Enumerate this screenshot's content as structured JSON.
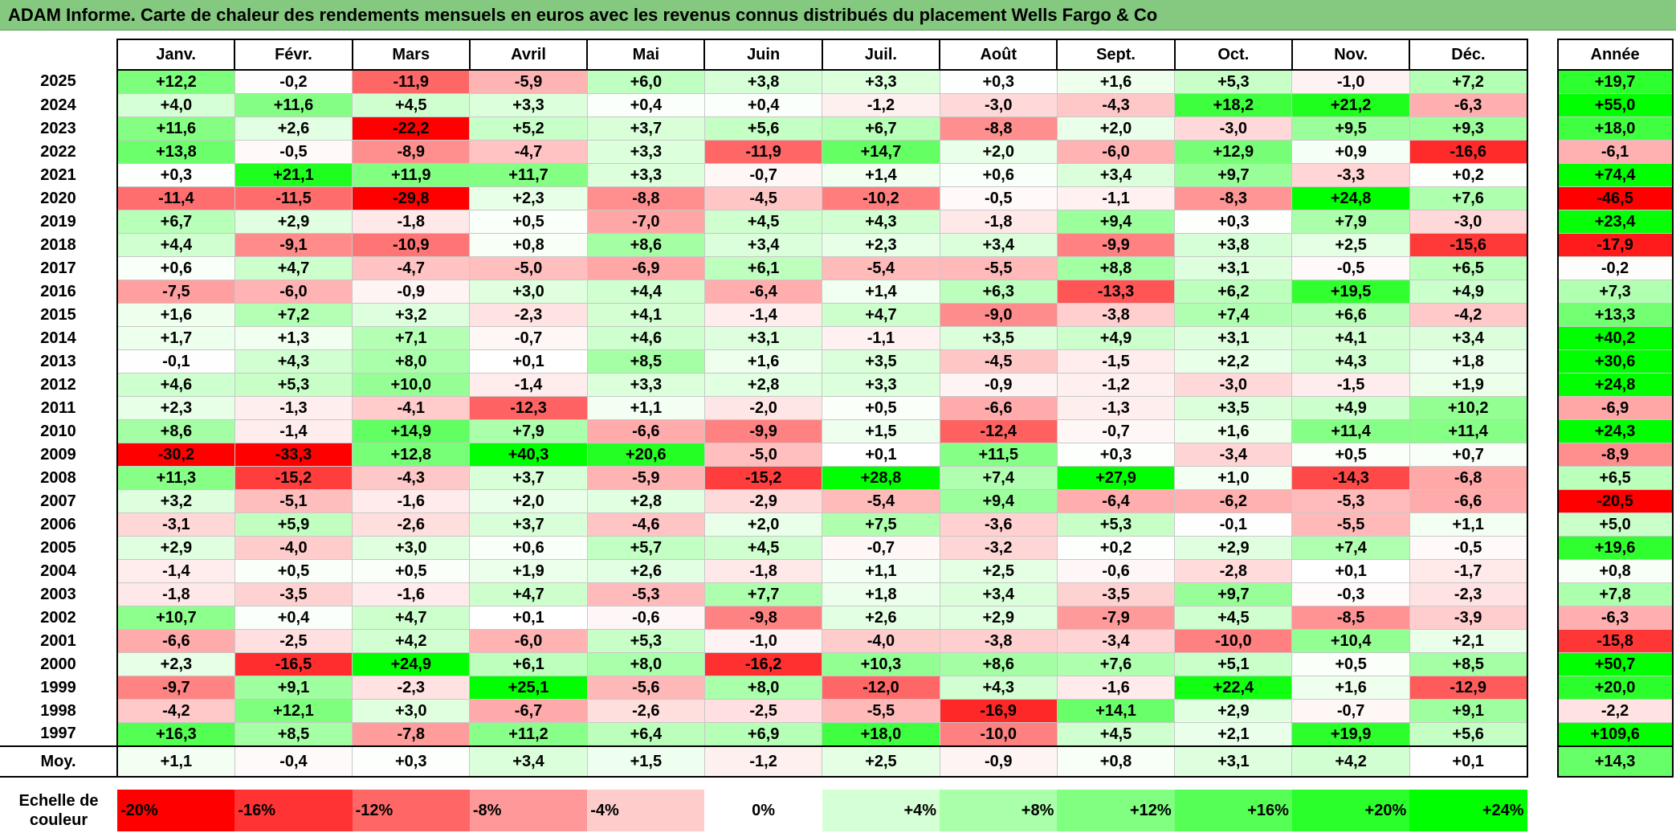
{
  "title": "ADAM Informe. Carte de chaleur des rendements mensuels en euros avec les revenus connus distribués du placement Wells Fargo & Co",
  "months": [
    "Janv.",
    "Févr.",
    "Mars",
    "Avril",
    "Mai",
    "Juin",
    "Juil.",
    "Août",
    "Sept.",
    "Oct.",
    "Nov.",
    "Déc."
  ],
  "annual_label": "Année",
  "average_label": "Moy.",
  "scale_label": "Echelle de couleur",
  "scale": [
    "-20%",
    "-16%",
    "-12%",
    "-8%",
    "-4%",
    "0%",
    "+4%",
    "+8%",
    "+12%",
    "+16%",
    "+20%",
    "+24%"
  ],
  "colors": {
    "title_bg": "#84c97f",
    "negative": "#ff0000",
    "positive": "#00ff00",
    "neutral": "#ffffff"
  },
  "chart_data": {
    "type": "heatmap",
    "title": "ADAM Informe. Carte de chaleur des rendements mensuels en euros avec les revenus connus distribués du placement Wells Fargo & Co",
    "color_scale": {
      "min": -20,
      "mid": 0,
      "max": 24
    },
    "rows": [
      {
        "year": "2025",
        "values": [
          "+12,2",
          "-0,2",
          "-11,9",
          "-5,9",
          "+6,0",
          "+3,8",
          "+3,3",
          "+0,3",
          "+1,6",
          "+5,3",
          "-1,0",
          "+7,2"
        ],
        "annual": "+19,7"
      },
      {
        "year": "2024",
        "values": [
          "+4,0",
          "+11,6",
          "+4,5",
          "+3,3",
          "+0,4",
          "+0,4",
          "-1,2",
          "-3,0",
          "-4,3",
          "+18,2",
          "+21,2",
          "-6,3"
        ],
        "annual": "+55,0"
      },
      {
        "year": "2023",
        "values": [
          "+11,6",
          "+2,6",
          "-22,2",
          "+5,2",
          "+3,7",
          "+5,6",
          "+6,7",
          "-8,8",
          "+2,0",
          "-3,0",
          "+9,5",
          "+9,3"
        ],
        "annual": "+18,0"
      },
      {
        "year": "2022",
        "values": [
          "+13,8",
          "-0,5",
          "-8,9",
          "-4,7",
          "+3,3",
          "-11,9",
          "+14,7",
          "+2,0",
          "-6,0",
          "+12,9",
          "+0,9",
          "-16,6"
        ],
        "annual": "-6,1"
      },
      {
        "year": "2021",
        "values": [
          "+0,3",
          "+21,1",
          "+11,9",
          "+11,7",
          "+3,3",
          "-0,7",
          "+1,4",
          "+0,6",
          "+3,4",
          "+9,7",
          "-3,3",
          "+0,2"
        ],
        "annual": "+74,4"
      },
      {
        "year": "2020",
        "values": [
          "-11,4",
          "-11,5",
          "-29,8",
          "+2,3",
          "-8,8",
          "-4,5",
          "-10,2",
          "-0,5",
          "-1,1",
          "-8,3",
          "+24,8",
          "+7,6"
        ],
        "annual": "-46,5"
      },
      {
        "year": "2019",
        "values": [
          "+6,7",
          "+2,9",
          "-1,8",
          "+0,5",
          "-7,0",
          "+4,5",
          "+4,3",
          "-1,8",
          "+9,4",
          "+0,3",
          "+7,9",
          "-3,0"
        ],
        "annual": "+23,4"
      },
      {
        "year": "2018",
        "values": [
          "+4,4",
          "-9,1",
          "-10,9",
          "+0,8",
          "+8,6",
          "+3,4",
          "+2,3",
          "+3,4",
          "-9,9",
          "+3,8",
          "+2,5",
          "-15,6"
        ],
        "annual": "-17,9"
      },
      {
        "year": "2017",
        "values": [
          "+0,6",
          "+4,7",
          "-4,7",
          "-5,0",
          "-6,9",
          "+6,1",
          "-5,4",
          "-5,5",
          "+8,8",
          "+3,1",
          "-0,5",
          "+6,5"
        ],
        "annual": "-0,2"
      },
      {
        "year": "2016",
        "values": [
          "-7,5",
          "-6,0",
          "-0,9",
          "+3,0",
          "+4,4",
          "-6,4",
          "+1,4",
          "+6,3",
          "-13,3",
          "+6,2",
          "+19,5",
          "+4,9"
        ],
        "annual": "+7,3"
      },
      {
        "year": "2015",
        "values": [
          "+1,6",
          "+7,2",
          "+3,2",
          "-2,3",
          "+4,1",
          "-1,4",
          "+4,7",
          "-9,0",
          "-3,8",
          "+7,4",
          "+6,6",
          "-4,2"
        ],
        "annual": "+13,3"
      },
      {
        "year": "2014",
        "values": [
          "+1,7",
          "+1,3",
          "+7,1",
          "-0,7",
          "+4,6",
          "+3,1",
          "-1,1",
          "+3,5",
          "+4,9",
          "+3,1",
          "+4,1",
          "+3,4"
        ],
        "annual": "+40,2"
      },
      {
        "year": "2013",
        "values": [
          "-0,1",
          "+4,3",
          "+8,0",
          "+0,1",
          "+8,5",
          "+1,6",
          "+3,5",
          "-4,5",
          "-1,5",
          "+2,2",
          "+4,3",
          "+1,8"
        ],
        "annual": "+30,6"
      },
      {
        "year": "2012",
        "values": [
          "+4,6",
          "+5,3",
          "+10,0",
          "-1,4",
          "+3,3",
          "+2,8",
          "+3,3",
          "-0,9",
          "-1,2",
          "-3,0",
          "-1,5",
          "+1,9"
        ],
        "annual": "+24,8"
      },
      {
        "year": "2011",
        "values": [
          "+2,3",
          "-1,3",
          "-4,1",
          "-12,3",
          "+1,1",
          "-2,0",
          "+0,5",
          "-6,6",
          "-1,3",
          "+3,5",
          "+4,9",
          "+10,2"
        ],
        "annual": "-6,9"
      },
      {
        "year": "2010",
        "values": [
          "+8,6",
          "-1,4",
          "+14,9",
          "+7,9",
          "-6,6",
          "-9,9",
          "+1,5",
          "-12,4",
          "-0,7",
          "+1,6",
          "+11,4",
          "+11,4"
        ],
        "annual": "+24,3"
      },
      {
        "year": "2009",
        "values": [
          "-30,2",
          "-33,3",
          "+12,8",
          "+40,3",
          "+20,6",
          "-5,0",
          "+0,1",
          "+11,5",
          "+0,3",
          "-3,4",
          "+0,5",
          "+0,7"
        ],
        "annual": "-8,9"
      },
      {
        "year": "2008",
        "values": [
          "+11,3",
          "-15,2",
          "-4,3",
          "+3,7",
          "-5,9",
          "-15,2",
          "+28,8",
          "+7,4",
          "+27,9",
          "+1,0",
          "-14,3",
          "-6,8"
        ],
        "annual": "+6,5"
      },
      {
        "year": "2007",
        "values": [
          "+3,2",
          "-5,1",
          "-1,6",
          "+2,0",
          "+2,8",
          "-2,9",
          "-5,4",
          "+9,4",
          "-6,4",
          "-6,2",
          "-5,3",
          "-6,6"
        ],
        "annual": "-20,5"
      },
      {
        "year": "2006",
        "values": [
          "-3,1",
          "+5,9",
          "-2,6",
          "+3,7",
          "-4,6",
          "+2,0",
          "+7,5",
          "-3,6",
          "+5,3",
          "-0,1",
          "-5,5",
          "+1,1"
        ],
        "annual": "+5,0"
      },
      {
        "year": "2005",
        "values": [
          "+2,9",
          "-4,0",
          "+3,0",
          "+0,6",
          "+5,7",
          "+4,5",
          "-0,7",
          "-3,2",
          "+0,2",
          "+2,9",
          "+7,4",
          "-0,5"
        ],
        "annual": "+19,6"
      },
      {
        "year": "2004",
        "values": [
          "-1,4",
          "+0,5",
          "+0,5",
          "+1,9",
          "+2,6",
          "-1,8",
          "+1,1",
          "+2,5",
          "-0,6",
          "-2,8",
          "+0,1",
          "-1,7"
        ],
        "annual": "+0,8"
      },
      {
        "year": "2003",
        "values": [
          "-1,8",
          "-3,5",
          "-1,6",
          "+4,7",
          "-5,3",
          "+7,7",
          "+1,8",
          "+3,4",
          "-3,5",
          "+9,7",
          "-0,3",
          "-2,3"
        ],
        "annual": "+7,8"
      },
      {
        "year": "2002",
        "values": [
          "+10,7",
          "+0,4",
          "+4,7",
          "+0,1",
          "-0,6",
          "-9,8",
          "+2,6",
          "+2,9",
          "-7,9",
          "+4,5",
          "-8,5",
          "-3,9"
        ],
        "annual": "-6,3"
      },
      {
        "year": "2001",
        "values": [
          "-6,6",
          "-2,5",
          "+4,2",
          "-6,0",
          "+5,3",
          "-1,0",
          "-4,0",
          "-3,8",
          "-3,4",
          "-10,0",
          "+10,4",
          "+2,1"
        ],
        "annual": "-15,8"
      },
      {
        "year": "2000",
        "values": [
          "+2,3",
          "-16,5",
          "+24,9",
          "+6,1",
          "+8,0",
          "-16,2",
          "+10,3",
          "+8,6",
          "+7,6",
          "+5,1",
          "+0,5",
          "+8,5"
        ],
        "annual": "+50,7"
      },
      {
        "year": "1999",
        "values": [
          "-9,7",
          "+9,1",
          "-2,3",
          "+25,1",
          "-5,6",
          "+8,0",
          "-12,0",
          "+4,3",
          "-1,6",
          "+22,4",
          "+1,6",
          "-12,9"
        ],
        "annual": "+20,0"
      },
      {
        "year": "1998",
        "values": [
          "-4,2",
          "+12,1",
          "+3,0",
          "-6,7",
          "-2,6",
          "-2,5",
          "-5,5",
          "-16,9",
          "+14,1",
          "+2,9",
          "-0,7",
          "+9,1"
        ],
        "annual": "-2,2"
      },
      {
        "year": "1997",
        "values": [
          "+16,3",
          "+8,5",
          "-7,8",
          "+11,2",
          "+6,4",
          "+6,9",
          "+18,0",
          "-10,0",
          "+4,5",
          "+2,1",
          "+19,9",
          "+5,6"
        ],
        "annual": "+109,6"
      }
    ],
    "average": {
      "values": [
        "+1,1",
        "-0,4",
        "+0,3",
        "+3,4",
        "+1,5",
        "-1,2",
        "+2,5",
        "-0,9",
        "+0,8",
        "+3,1",
        "+4,2",
        "+0,1"
      ],
      "annual": "+14,3"
    }
  }
}
